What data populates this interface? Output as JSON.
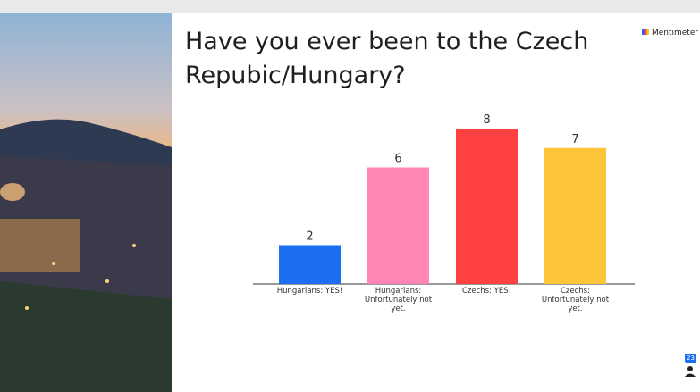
{
  "brand": "Mentimeter",
  "participants": 23,
  "chart_data": {
    "type": "bar",
    "title": "Have you ever been to the Czech Repubic/Hungary?",
    "categories": [
      "Hungarians: YES!",
      "Hungarians: Unfortunately not yet.",
      "Czechs: YES!",
      "Czechs: Unfortunately not yet."
    ],
    "values": [
      2,
      6,
      8,
      7
    ],
    "colors": [
      "#1d6ff2",
      "#ff85b4",
      "#ff4141",
      "#ffc53a"
    ]
  }
}
